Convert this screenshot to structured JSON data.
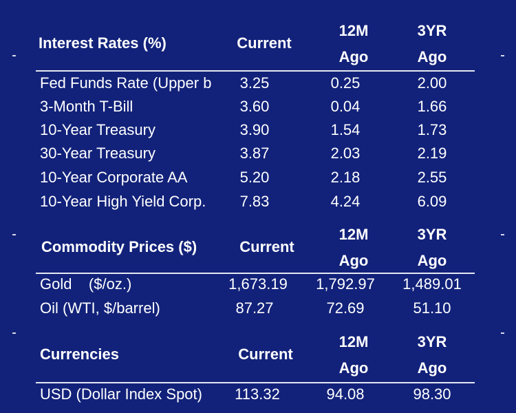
{
  "interest_rates": {
    "title": "Interest Rates (%)",
    "col_current": "Current",
    "col_12m_line1": "12M",
    "col_12m_line2": "Ago",
    "col_3yr_line1": "3YR",
    "col_3yr_line2": "Ago",
    "rows": [
      {
        "label": "Fed Funds Rate (Upper b",
        "current": "3.25",
        "ago_12m": "0.25",
        "ago_3yr": "2.00"
      },
      {
        "label": "3-Month T-Bill",
        "current": "3.60",
        "ago_12m": "0.04",
        "ago_3yr": "1.66"
      },
      {
        "label": "10-Year Treasury",
        "current": "3.90",
        "ago_12m": "1.54",
        "ago_3yr": "1.73"
      },
      {
        "label": "30-Year Treasury",
        "current": "3.87",
        "ago_12m": "2.03",
        "ago_3yr": "2.19"
      },
      {
        "label": "10-Year Corporate AA",
        "current": "5.20",
        "ago_12m": "2.18",
        "ago_3yr": "2.55"
      },
      {
        "label": "10-Year High Yield Corp.",
        "current": "7.83",
        "ago_12m": "4.24",
        "ago_3yr": "6.09"
      }
    ]
  },
  "commodity_prices": {
    "title": "Commodity Prices ($)",
    "col_current": "Current",
    "col_12m_line1": "12M",
    "col_12m_line2": "Ago",
    "col_3yr_line1": "3YR",
    "col_3yr_line2": "Ago",
    "rows": [
      {
        "label": "Gold    ($/oz.)",
        "current": "1,673.19",
        "ago_12m": "1,792.97",
        "ago_3yr": "1,489.01"
      },
      {
        "label": "Oil (WTI, $/barrel)",
        "current": "87.27",
        "ago_12m": "72.69",
        "ago_3yr": "51.10"
      }
    ]
  },
  "currencies": {
    "title": "Currencies",
    "col_current": "Current",
    "col_12m_line1": "12M",
    "col_12m_line2": "Ago",
    "col_3yr_line1": "3YR",
    "col_3yr_line2": "Ago",
    "rows": [
      {
        "label": "USD (Dollar Index Spot)",
        "current": "113.32",
        "ago_12m": "94.08",
        "ago_3yr": "98.30"
      }
    ]
  }
}
